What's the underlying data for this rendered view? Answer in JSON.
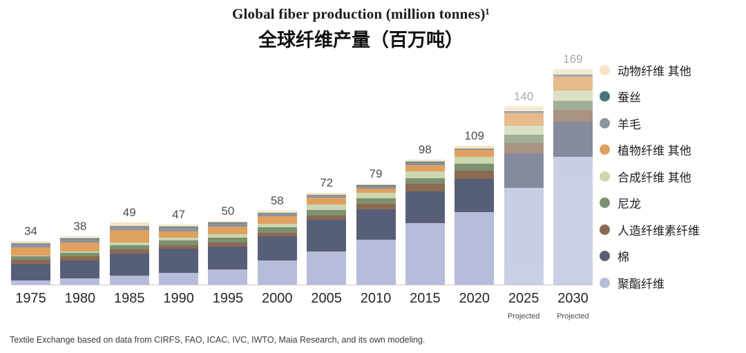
{
  "header": {
    "title": "Global fiber production (million tonnes)¹",
    "subtitle": "全球纤维产量（百万吨）"
  },
  "footer": {
    "text": "Textile Exchange based on data from CIRFS, FAO, ICAC, IVC, IWTO, Maia Research, and its own modeling."
  },
  "colors": {
    "axis": "#c9c9c9",
    "value_label": "#4b4b4b",
    "value_label_projected": "#a8a8a8"
  },
  "chart_data": {
    "type": "bar",
    "stacked": true,
    "title": "Global fiber production (million tonnes)¹",
    "title_zh": "全球纤维产量（百万吨）",
    "legend_position": "right",
    "grid": false,
    "ylim": [
      0,
      169
    ],
    "categories": [
      "1975",
      "1980",
      "1985",
      "1990",
      "1995",
      "2000",
      "2005",
      "2010",
      "2015",
      "2020",
      "2025",
      "2030"
    ],
    "totals": [
      34,
      38,
      49,
      47,
      50,
      58,
      72,
      79,
      98,
      109,
      140,
      169
    ],
    "projected_categories": [
      "2025",
      "2030"
    ],
    "projected_label": "Projected",
    "series": [
      {
        "name": "聚酯纤维",
        "color": "#b7bcdb",
        "values": [
          3.5,
          5,
          7,
          9,
          12,
          19,
          26,
          35,
          48,
          57,
          76,
          100
        ]
      },
      {
        "name": "棉",
        "color": "#575f78",
        "values": [
          13,
          14,
          17.5,
          19,
          18,
          19,
          25,
          24,
          25,
          26,
          27,
          28
        ]
      },
      {
        "name": "人造纤维素纤维",
        "color": "#8c6a52",
        "values": [
          3,
          3,
          3,
          3,
          3,
          2.8,
          3.4,
          4.5,
          6,
          6.5,
          8,
          9
        ]
      },
      {
        "name": "尼龙",
        "color": "#7c9170",
        "values": [
          2.5,
          3,
          3.5,
          3.8,
          4,
          4.1,
          4.2,
          4,
          4.5,
          5.5,
          6.5,
          7
        ]
      },
      {
        "name": "合成纤维 其他",
        "color": "#ccd6b0",
        "values": [
          1,
          1.2,
          2,
          2,
          2.5,
          3,
          4,
          4.5,
          5.5,
          5,
          7,
          8
        ]
      },
      {
        "name": "植物纤维 其他",
        "color": "#dfa160",
        "values": [
          6.5,
          7,
          10,
          5,
          6,
          6,
          5.5,
          3.5,
          5,
          5.9,
          10,
          11
        ]
      },
      {
        "name": "羊毛",
        "color": "#8b939c",
        "values": [
          2.8,
          2.8,
          3,
          3.3,
          2.8,
          2.3,
          2.2,
          2,
          2,
          1,
          1.2,
          1.3
        ]
      },
      {
        "name": "蚕丝",
        "color": "#47767a",
        "values": [
          0.2,
          0.2,
          0.3,
          0.4,
          0.4,
          0.4,
          0.4,
          0.4,
          0.4,
          0.1,
          0.2,
          0.2
        ]
      },
      {
        "name": "动物纤维 其他",
        "color": "#f6e4c4",
        "values": [
          1.5,
          1.8,
          2.7,
          1.5,
          1.3,
          1.4,
          1.3,
          1.1,
          1.6,
          2,
          4.1,
          4.5
        ]
      }
    ]
  }
}
